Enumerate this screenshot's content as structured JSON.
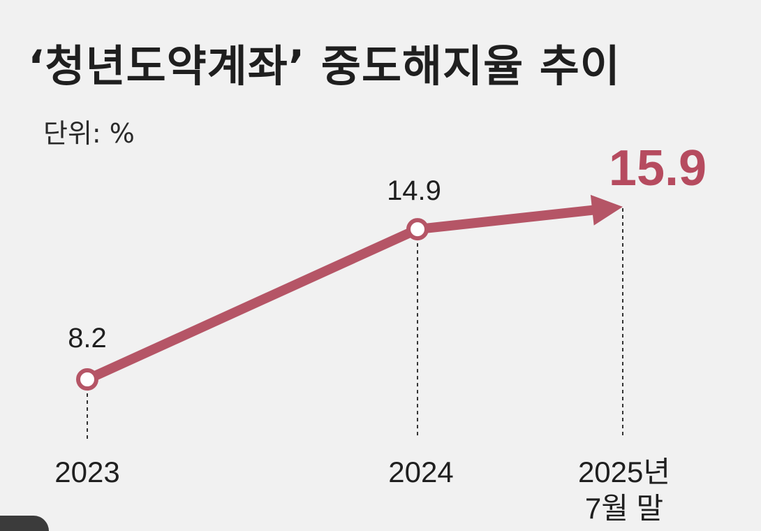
{
  "chart_data": {
    "type": "line",
    "title": "‘청년도약계좌’ 중도해지율 추이",
    "unit_label": "단위: %",
    "categories": [
      "2023",
      "2024",
      "2025년 7월 말"
    ],
    "category_lines": [
      [
        "2023"
      ],
      [
        "2024"
      ],
      [
        "2025년",
        "7월 말"
      ]
    ],
    "values": [
      8.2,
      14.9,
      15.9
    ],
    "value_labels": [
      "8.2",
      "14.9",
      "15.9"
    ],
    "highlight_last": true,
    "grid": false,
    "legend": "none"
  },
  "colors": {
    "background": "#f1f1f1",
    "line": "#b55566",
    "highlight_value": "#b64b5f",
    "text": "#1f1f1f",
    "dashed": "#333333"
  }
}
